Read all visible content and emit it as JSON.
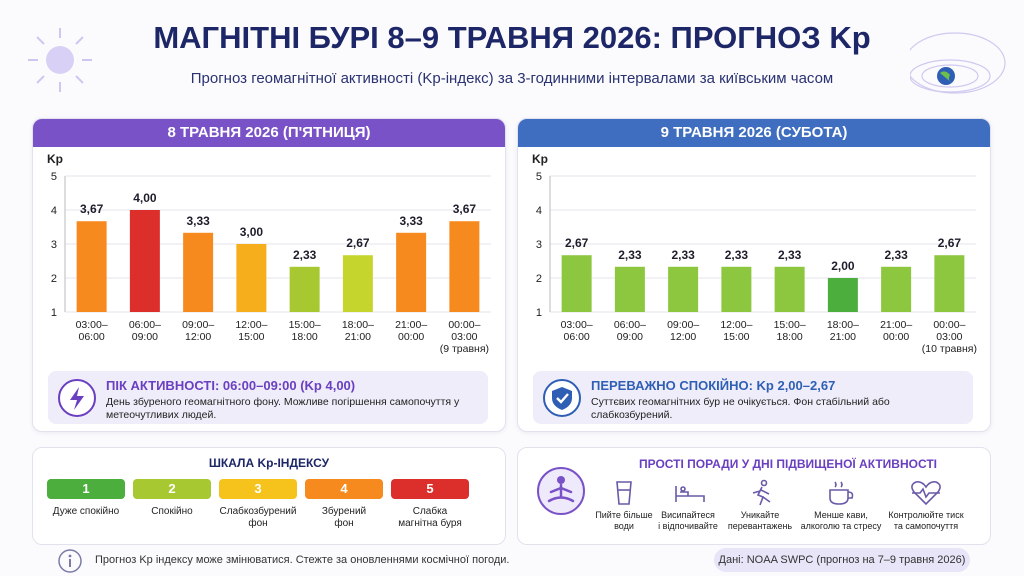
{
  "header": {
    "title": "МАГНІТНІ БУРІ 8–9 ТРАВНЯ 2026: ПРОГНОЗ Kp",
    "subtitle": "Прогноз геомагнітної активності (Kp-індекс) за 3-годинними інтервалами за київським часом"
  },
  "panels": [
    {
      "heading": "8 ТРАВНЯ 2026 (П'ЯТНИЦЯ)",
      "color": "#7a52c7",
      "note_title": "ПІК АКТИВНОСТІ: 06:00–09:00 (Kp 4,00)",
      "note_text": "День збуреного геомагнітного фону. Можливе погіршення самопочуття у метеочутливих людей.",
      "accent": "#6a3fc0"
    },
    {
      "heading": "9 ТРАВНЯ 2026 (СУБОТА)",
      "color": "#3f6dbf",
      "note_title": "ПЕРЕВАЖНО СПОКІЙНО: Kp 2,00–2,67",
      "note_text": "Суттєвих геомагнітних бур не очікується. Фон стабільний або слабкозбурений.",
      "accent": "#2f5fb5"
    }
  ],
  "chart_data": [
    {
      "type": "bar",
      "ylabel": "Kp",
      "categories": [
        "03:00–\n06:00",
        "06:00–\n09:00",
        "09:00–\n12:00",
        "12:00–\n15:00",
        "15:00–\n18:00",
        "18:00–\n21:00",
        "21:00–\n00:00",
        "00:00–\n03:00\n(9 травня)"
      ],
      "values": [
        3.67,
        4.0,
        3.33,
        3.0,
        2.33,
        2.67,
        3.33,
        3.67
      ],
      "value_labels": [
        "3,67",
        "4,00",
        "3,33",
        "3,00",
        "2,33",
        "2,67",
        "3,33",
        "3,67"
      ],
      "colors": [
        "#f68a1f",
        "#dc2e2a",
        "#f68a1f",
        "#f6ae1c",
        "#a8c832",
        "#c6d42e",
        "#f68a1f",
        "#f68a1f"
      ],
      "ylim": [
        1,
        5
      ],
      "yticks": [
        1,
        2,
        3,
        4,
        5
      ],
      "grid": true
    },
    {
      "type": "bar",
      "ylabel": "Kp",
      "categories": [
        "03:00–\n06:00",
        "06:00–\n09:00",
        "09:00–\n12:00",
        "12:00–\n15:00",
        "15:00–\n18:00",
        "18:00–\n21:00",
        "21:00–\n00:00",
        "00:00–\n03:00\n(10 травня)"
      ],
      "values": [
        2.67,
        2.33,
        2.33,
        2.33,
        2.33,
        2.0,
        2.33,
        2.67
      ],
      "value_labels": [
        "2,67",
        "2,33",
        "2,33",
        "2,33",
        "2,33",
        "2,00",
        "2,33",
        "2,67"
      ],
      "colors": [
        "#8dc63f",
        "#8dc63f",
        "#8dc63f",
        "#8dc63f",
        "#8dc63f",
        "#4cae3d",
        "#8dc63f",
        "#8dc63f"
      ],
      "ylim": [
        1,
        5
      ],
      "yticks": [
        1,
        2,
        3,
        4,
        5
      ],
      "grid": true
    }
  ],
  "scale": {
    "title": "ШКАЛА Kp-ІНДЕКСУ",
    "items": [
      {
        "level": "1",
        "label": "Дуже спокійно",
        "color": "#4cae3d"
      },
      {
        "level": "2",
        "label": "Спокійно",
        "color": "#a8c832"
      },
      {
        "level": "3",
        "label": "Слабкозбурений\nфон",
        "color": "#f6c21c"
      },
      {
        "level": "4",
        "label": "Збурений\nфон",
        "color": "#f68a1f"
      },
      {
        "level": "5",
        "label": "Слабка\nмагнітна буря",
        "color": "#dc2e2a"
      }
    ]
  },
  "tips": {
    "title": "ПРОСТІ ПОРАДИ У ДНІ ПІДВИЩЕНОЇ АКТИВНОСТІ",
    "items": [
      "Пийте більше\nводи",
      "Висипайтеся\nі відпочивайте",
      "Уникайте\nперевантажень",
      "Менше кави,\nалкоголю та стресу",
      "Контролюйте тиск\nта самопочуття"
    ]
  },
  "footer": {
    "note": "Прогноз Kp індексу може змінюватися. Стежте за оновленнями космічної погоди.",
    "source": "Дані: NOAA SWPC (прогноз на 7–9 травня 2026)"
  }
}
